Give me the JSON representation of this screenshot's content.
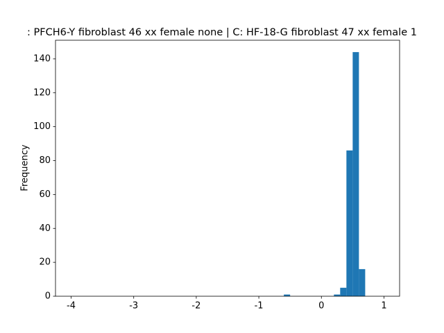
{
  "chart_data": {
    "type": "histogram",
    "title": ": PFCH6-Y fibroblast 46 xx female none | C: HF-18-G fibroblast 47 xx female 1",
    "ylabel": "Frequency",
    "color": "#1f77b4",
    "bins": [
      -4.0,
      -3.9,
      -3.8,
      -3.7,
      -3.6,
      -3.5,
      -3.4,
      -3.3,
      -3.2,
      -3.1,
      -3.0,
      -2.9,
      -2.8,
      -2.7,
      -2.6,
      -2.5,
      -2.4,
      -2.3,
      -2.2,
      -2.1,
      -2.0,
      -1.9,
      -1.8,
      -1.7,
      -1.6,
      -1.5,
      -1.4,
      -1.3,
      -1.2,
      -1.1,
      -1.0,
      -0.9,
      -0.8,
      -0.7,
      -0.6,
      -0.5,
      -0.4,
      -0.3,
      -0.2,
      -0.1,
      0.0,
      0.1,
      0.2,
      0.3,
      0.4,
      0.5,
      0.6,
      0.7,
      0.8,
      0.9,
      1.0
    ],
    "values": [
      0,
      0,
      0,
      0,
      0,
      0,
      0,
      0,
      0,
      0,
      0,
      0,
      0,
      0,
      0,
      0,
      0,
      0,
      0,
      0,
      0,
      0,
      0,
      0,
      0,
      0,
      0,
      0,
      0,
      0,
      0,
      0,
      0,
      0,
      1,
      0,
      0,
      0,
      0,
      0,
      0,
      0,
      1,
      5,
      86,
      144,
      16,
      0,
      0,
      0
    ],
    "xlim": [
      -4.25,
      1.25
    ],
    "xticks": [
      -4,
      -3,
      -2,
      -1,
      0,
      1
    ],
    "ylim": [
      0,
      151
    ],
    "yticks": [
      0,
      20,
      40,
      60,
      80,
      100,
      120,
      140
    ]
  }
}
